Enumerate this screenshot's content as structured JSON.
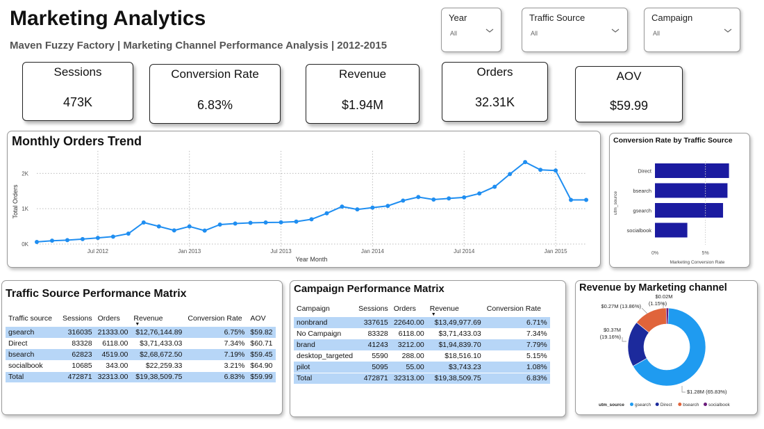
{
  "header": {
    "title": "Marketing Analytics",
    "subtitle": "Maven Fuzzy Factory | Marketing Channel Performance Analysis | 2012-2015"
  },
  "filters": [
    {
      "label": "Year",
      "value": "All"
    },
    {
      "label": "Traffic Source",
      "value": "All"
    },
    {
      "label": "Campaign",
      "value": "All"
    }
  ],
  "kpis": [
    {
      "label": "Sessions",
      "value": "473K"
    },
    {
      "label": "Conversion Rate",
      "value": "6.83%"
    },
    {
      "label": "Revenue",
      "value": "$1.94M"
    },
    {
      "label": "Orders",
      "value": "32.31K"
    },
    {
      "label": "AOV",
      "value": "$59.99"
    }
  ],
  "colors": {
    "line": "#1f8ef1",
    "bar": "#1b1ba0",
    "band": "#b7d6f7",
    "donut_gsearch": "#1f9bf0",
    "donut_direct": "#1c2a9c",
    "donut_bsearch": "#e0643b",
    "donut_socialbook": "#6a1b7a"
  },
  "chart_data": [
    {
      "type": "line",
      "title": "Monthly Orders Trend",
      "xlabel": "Year Month",
      "ylabel": "Total Orders",
      "x_ticks": [
        "Jul 2012",
        "Jan 2013",
        "Jul 2013",
        "Jan 2014",
        "Jul 2014",
        "Jan 2015"
      ],
      "y_ticks": [
        "0K",
        "1K",
        "2K"
      ],
      "ylim": [
        0,
        2400
      ],
      "grid": true,
      "x": [
        "2012-03",
        "2012-04",
        "2012-05",
        "2012-06",
        "2012-07",
        "2012-08",
        "2012-09",
        "2012-10",
        "2012-11",
        "2012-12",
        "2013-01",
        "2013-02",
        "2013-03",
        "2013-04",
        "2013-05",
        "2013-06",
        "2013-07",
        "2013-08",
        "2013-09",
        "2013-10",
        "2013-11",
        "2013-12",
        "2014-01",
        "2014-02",
        "2014-03",
        "2014-04",
        "2014-05",
        "2014-06",
        "2014-07",
        "2014-08",
        "2014-09",
        "2014-10",
        "2014-11",
        "2014-12",
        "2015-01",
        "2015-02",
        "2015-03"
      ],
      "values": [
        60,
        95,
        110,
        140,
        175,
        210,
        295,
        610,
        500,
        385,
        500,
        380,
        550,
        580,
        600,
        610,
        615,
        635,
        700,
        870,
        1060,
        980,
        1030,
        1080,
        1230,
        1330,
        1260,
        1290,
        1320,
        1430,
        1620,
        1980,
        2320,
        2100,
        2080,
        1250,
        1250
      ]
    },
    {
      "type": "bar",
      "orientation": "horizontal",
      "title": "Conversion Rate by Traffic Source",
      "xlabel": "Marketing Conversion Rate",
      "ylabel": "utm_source",
      "x_ticks": [
        "0%",
        "5%"
      ],
      "xlim": [
        0,
        8.4
      ],
      "categories": [
        "Direct",
        "bsearch",
        "gsearch",
        "socialbook"
      ],
      "values": [
        7.34,
        7.19,
        6.75,
        3.21
      ]
    },
    {
      "type": "pie",
      "donut": true,
      "title": "Revenue by Marketing channel",
      "legend_title": "utm_source",
      "legend_position": "bottom",
      "labels": [
        "gsearch",
        "Direct",
        "bsearch",
        "socialbook"
      ],
      "values": [
        1.28,
        0.37,
        0.27,
        0.02
      ],
      "percent": [
        65.83,
        19.16,
        13.86,
        1.15
      ],
      "data_labels": [
        "$1.28M (65.83%)",
        "$0.37M (19.16%)",
        "$0.27M (13.86%)",
        "$0.02M (1.15%)"
      ]
    }
  ],
  "traffic_matrix": {
    "title": "Traffic Source Performance Matrix",
    "headers": [
      "Traffic source",
      "Sessions",
      "Orders",
      "Revenue",
      "Conversion Rate",
      "AOV"
    ],
    "rows": [
      [
        "gsearch",
        "316035",
        "21333.00",
        "$12,76,144.89",
        "6.75%",
        "$59.82"
      ],
      [
        "Direct",
        "83328",
        "6118.00",
        "$3,71,433.03",
        "7.34%",
        "$60.71"
      ],
      [
        "bsearch",
        "62823",
        "4519.00",
        "$2,68,672.50",
        "7.19%",
        "$59.45"
      ],
      [
        "socialbook",
        "10685",
        "343.00",
        "$22,259.33",
        "3.21%",
        "$64.90"
      ]
    ],
    "total": [
      "Total",
      "472871",
      "32313.00",
      "$19,38,509.75",
      "6.83%",
      "$59.99"
    ]
  },
  "campaign_matrix": {
    "title": "Campaign Performance Matrix",
    "headers": [
      "Campaign",
      "Sessions",
      "Orders",
      "Revenue",
      "Conversion Rate"
    ],
    "rows": [
      [
        "nonbrand",
        "337615",
        "22640.00",
        "$13,49,977.69",
        "6.71%"
      ],
      [
        "No Campaign",
        "83328",
        "6118.00",
        "$3,71,433.03",
        "7.34%"
      ],
      [
        "brand",
        "41243",
        "3212.00",
        "$1,94,839.70",
        "7.79%"
      ],
      [
        "desktop_targeted",
        "5590",
        "288.00",
        "$18,516.10",
        "5.15%"
      ],
      [
        "pilot",
        "5095",
        "55.00",
        "$3,743.23",
        "1.08%"
      ]
    ],
    "total": [
      "Total",
      "472871",
      "32313.00",
      "$19,38,509.75",
      "6.83%"
    ]
  }
}
